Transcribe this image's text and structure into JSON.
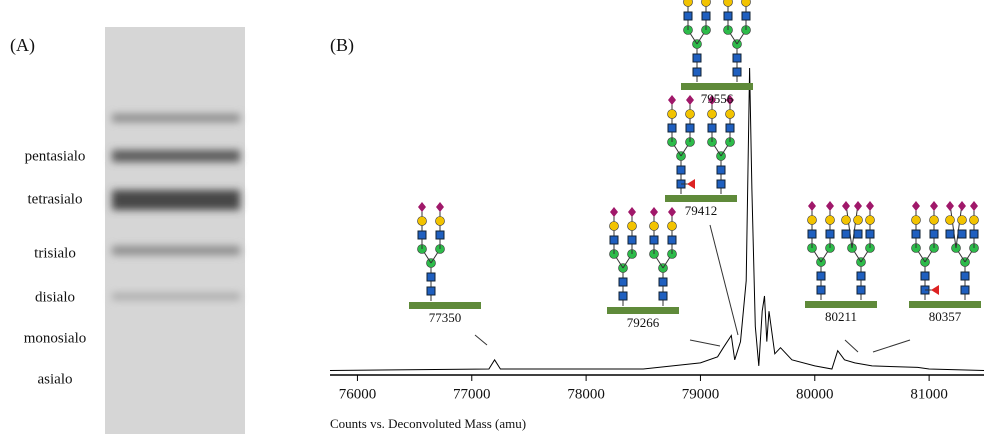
{
  "panel_a": {
    "label": "(A)",
    "bands": [
      "pentasialo",
      "tetrasialo",
      "trisialo",
      "disialo",
      "monosialo",
      "asialo"
    ]
  },
  "chart_data": {
    "type": "line",
    "panel_label": "(B)",
    "xlabel": "Counts vs. Deconvoluted Mass (amu)",
    "xlim": [
      75760,
      81480
    ],
    "ylim": [
      0,
      100
    ],
    "xticks": [
      76000,
      77000,
      78000,
      79000,
      80000,
      81000
    ],
    "x": [
      75760,
      77150,
      77200,
      77250,
      78500,
      79000,
      79150,
      79200,
      79270,
      79300,
      79350,
      79400,
      79430,
      79450,
      79480,
      79510,
      79540,
      79560,
      79580,
      79600,
      79650,
      79700,
      79800,
      80000,
      80150,
      80200,
      80260,
      80350,
      80500,
      80900,
      81000,
      81480
    ],
    "values": [
      0.5,
      1,
      4,
      1,
      1,
      3,
      5,
      8,
      12,
      4,
      10,
      30,
      100,
      60,
      15,
      2,
      20,
      25,
      10,
      20,
      6,
      8,
      4,
      2,
      1,
      7,
      4,
      3,
      2,
      1.5,
      1,
      0.5
    ],
    "color": "#000000",
    "annotations": [
      "77350",
      "79266",
      "79412",
      "79556",
      "80211",
      "80357"
    ]
  }
}
